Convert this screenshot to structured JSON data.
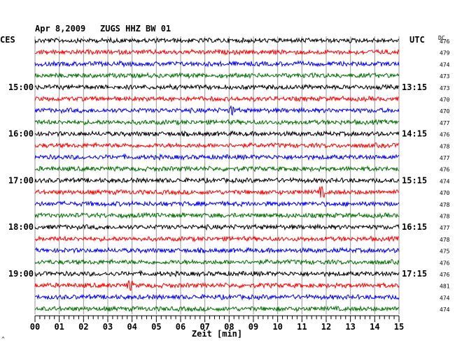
{
  "header": {
    "date": "Apr 8,2009",
    "station": "ZUGS HHZ BW 01",
    "left_tz": "CES",
    "right_tz": "UTC",
    "dc_label": "DC"
  },
  "chart_data": {
    "type": "line",
    "title": "ZUGS HHZ BW 01",
    "xlabel": "Zeit [min]",
    "xlim": [
      0,
      15
    ],
    "x_ticks": [
      "00",
      "01",
      "02",
      "03",
      "04",
      "05",
      "06",
      "07",
      "08",
      "09",
      "10",
      "11",
      "12",
      "13",
      "14",
      "15"
    ],
    "trace_colors": [
      "#000000",
      "#ff0000",
      "#0000ff",
      "#007000"
    ],
    "left_time_labels": [
      "15:00",
      "16:00",
      "17:00",
      "18:00",
      "19:00"
    ],
    "right_time_labels": [
      "13:15",
      "14:15",
      "15:15",
      "16:15",
      "17:15"
    ],
    "dc_offsets": [
      476,
      479,
      474,
      473,
      473,
      470,
      470,
      477,
      476,
      478,
      477,
      476,
      474,
      470,
      478,
      478,
      477,
      478,
      475,
      476,
      476,
      481,
      474,
      474
    ],
    "events": [
      {
        "trace": 6,
        "minute": 8.1
      },
      {
        "trace": 13,
        "minute": 11.8
      },
      {
        "trace": 21,
        "minute": 3.9
      }
    ]
  },
  "footer_mark": "^"
}
